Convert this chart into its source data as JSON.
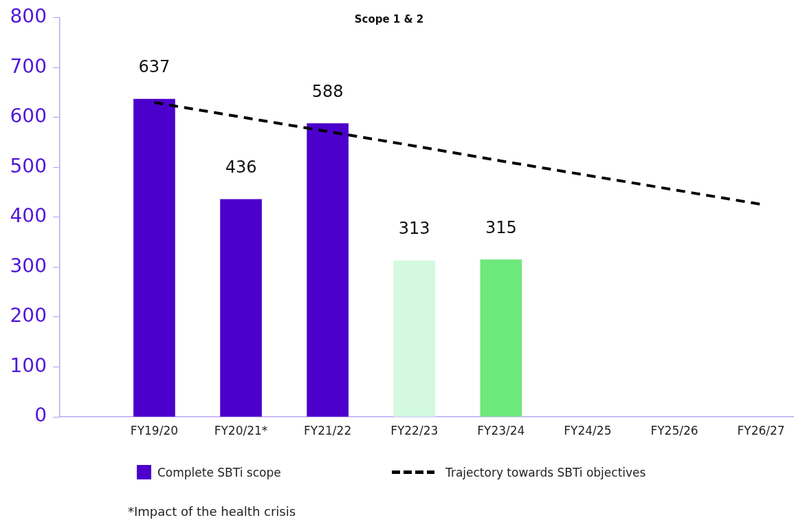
{
  "chart_data": {
    "type": "bar",
    "title": "Scope 1 & 2",
    "categories": [
      "FY19/20",
      "FY20/21*",
      "FY21/22",
      "FY22/23",
      "FY23/24",
      "FY24/25",
      "FY25/26",
      "FY26/27"
    ],
    "series": [
      {
        "name": "Complete SBTi scope",
        "color": "#4b00cc",
        "colors": [
          "#4b00cc",
          "#4b00cc",
          "#4b00cc",
          "#d3f9e0",
          "#6de87a",
          null,
          null,
          null
        ],
        "values": [
          637,
          436,
          588,
          313,
          315,
          null,
          null,
          null
        ],
        "value_labels": [
          "637",
          "436",
          "588",
          "313",
          "315",
          null,
          null,
          null
        ]
      },
      {
        "name": "Trajectory towards SBTi objectives",
        "type": "line",
        "color": "#000000",
        "line_style": "dashed",
        "marker": "none",
        "values": [
          630,
          601,
          572,
          543,
          513,
          484,
          455,
          426
        ]
      }
    ],
    "ylim": [
      0,
      800
    ],
    "yticks": [
      0,
      100,
      200,
      300,
      400,
      500,
      600,
      700,
      800
    ],
    "legend": "bottom",
    "annotations": [
      "*Impact of the health crisis"
    ]
  }
}
